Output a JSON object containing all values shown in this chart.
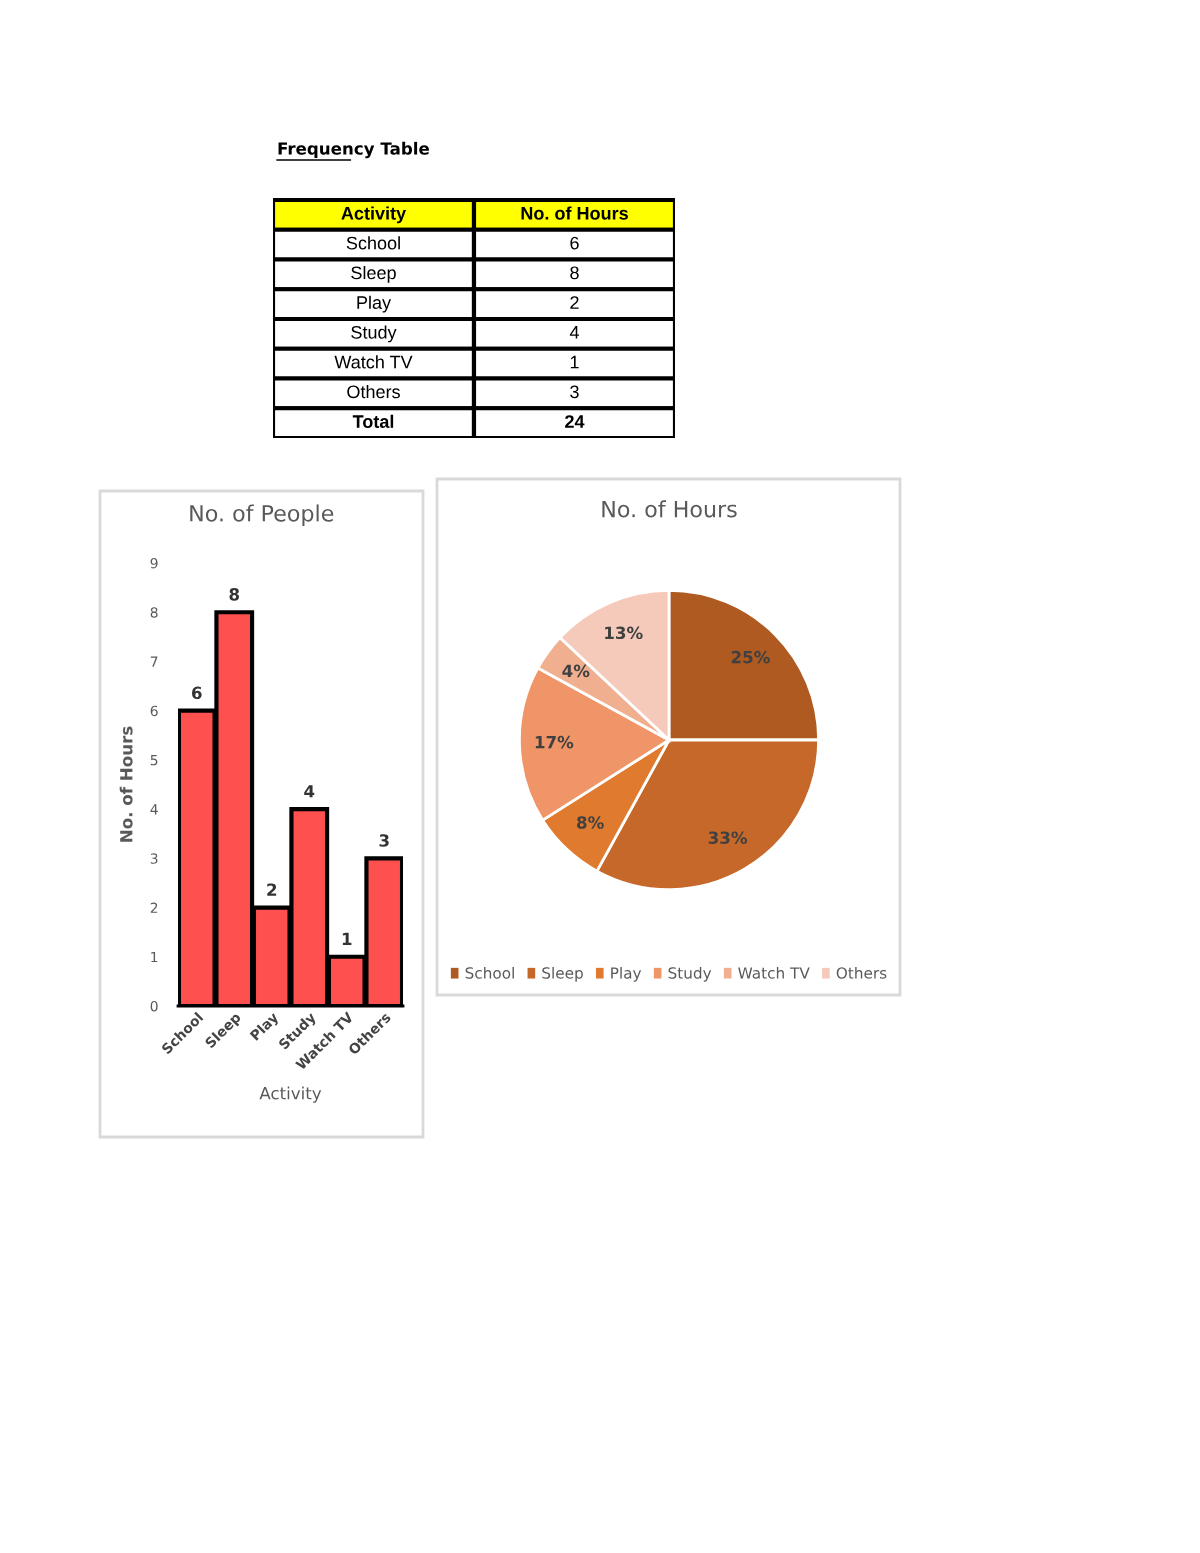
{
  "chart_data": [
    {
      "type": "other",
      "title": "Frequency Table",
      "annotations": [
        "Activity",
        "No. of Hours",
        "School",
        "6",
        "Sleep",
        "8",
        "Play",
        "2",
        "Study",
        "4",
        "Watch TV",
        "1",
        "Others",
        "3",
        "Total",
        "24"
      ]
    },
    {
      "type": "bar",
      "title": "No. of People",
      "xlabel": "Activity",
      "ylabel": "No. of Hours",
      "categories": [
        "School",
        "Sleep",
        "Play",
        "Study",
        "Watch TV",
        "Others"
      ],
      "values": [
        6,
        8,
        2,
        4,
        1,
        3
      ],
      "color": "#ff5050",
      "ylim": [
        0,
        9
      ],
      "yticks": [
        0,
        1,
        2,
        3,
        4,
        5,
        6,
        7,
        8,
        9
      ],
      "data_labels": true,
      "grid": false
    },
    {
      "type": "pie",
      "title": "No. of Hours",
      "categories": [
        "School",
        "Sleep",
        "Play",
        "Study",
        "Watch TV",
        "Others"
      ],
      "values": [
        25,
        33,
        8,
        17,
        4,
        13
      ],
      "colors": [
        "#ae5a21",
        "#c5682a",
        "#e07a2e",
        "#ef9567",
        "#f0b08f",
        "#f5cabb"
      ],
      "value_labels": [
        "25%",
        "33%",
        "8%",
        "17%",
        "4%",
        "13%"
      ],
      "legend": "bottom"
    }
  ]
}
